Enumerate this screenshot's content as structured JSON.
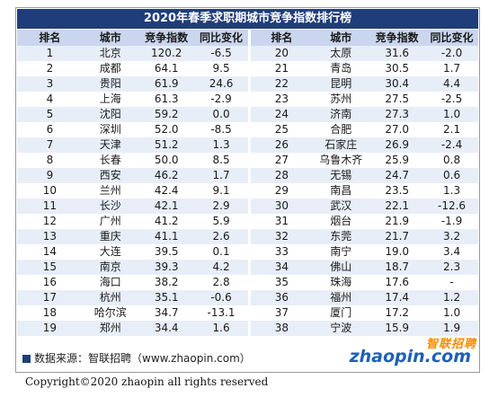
{
  "title": "2020年春季求职期城市竞争指数排行榜",
  "headers": [
    "排名",
    "城市",
    "竞争指数",
    "同比变化",
    "排名",
    "城市",
    "竞争指数",
    "同比变化"
  ],
  "rows": [
    [
      "1",
      "北京",
      "120.2",
      "-6.5",
      "20",
      "太原",
      "31.6",
      "-2.0"
    ],
    [
      "2",
      "成都",
      "64.1",
      "9.5",
      "21",
      "青岛",
      "30.5",
      "1.7"
    ],
    [
      "3",
      "贵阳",
      "61.9",
      "24.6",
      "22",
      "昆明",
      "30.4",
      "4.4"
    ],
    [
      "4",
      "上海",
      "61.3",
      "-2.9",
      "23",
      "苏州",
      "27.5",
      "-2.5"
    ],
    [
      "5",
      "沈阳",
      "59.2",
      "0.0",
      "24",
      "济南",
      "27.3",
      "1.0"
    ],
    [
      "6",
      "深圳",
      "52.0",
      "-8.5",
      "25",
      "合肥",
      "27.0",
      "2.1"
    ],
    [
      "7",
      "天津",
      "51.2",
      "1.3",
      "26",
      "石家庄",
      "26.9",
      "-2.4"
    ],
    [
      "8",
      "长春",
      "50.0",
      "8.5",
      "27",
      "乌鲁木齐",
      "25.9",
      "0.8"
    ],
    [
      "9",
      "西安",
      "46.2",
      "1.7",
      "28",
      "无锡",
      "24.7",
      "0.6"
    ],
    [
      "10",
      "兰州",
      "42.4",
      "9.1",
      "29",
      "南昌",
      "23.5",
      "1.3"
    ],
    [
      "11",
      "长沙",
      "42.1",
      "2.9",
      "30",
      "武汉",
      "22.1",
      "-12.6"
    ],
    [
      "12",
      "广州",
      "41.2",
      "5.9",
      "31",
      "烟台",
      "21.9",
      "-1.9"
    ],
    [
      "13",
      "重庆",
      "41.1",
      "2.6",
      "32",
      "东莞",
      "21.7",
      "3.2"
    ],
    [
      "14",
      "大连",
      "39.5",
      "0.1",
      "33",
      "南宁",
      "19.0",
      "3.4"
    ],
    [
      "15",
      "南京",
      "39.3",
      "4.2",
      "34",
      "佛山",
      "18.7",
      "2.3"
    ],
    [
      "16",
      "海口",
      "38.2",
      "2.8",
      "35",
      "珠海",
      "17.6",
      "-"
    ],
    [
      "17",
      "杭州",
      "35.1",
      "-0.6",
      "36",
      "福州",
      "17.4",
      "1.2"
    ],
    [
      "18",
      "哈尔滨",
      "34.7",
      "-13.1",
      "37",
      "厦门",
      "17.2",
      "1.0"
    ],
    [
      "19",
      "郑州",
      "34.4",
      "1.6",
      "38",
      "宁波",
      "15.9",
      "1.9"
    ]
  ],
  "source": "数据来源：智联招聘（www.zhaopin.com）",
  "logo": {
    "cn": "智联招聘",
    "en": "zhaopin.com"
  },
  "copyright": "Copyright©2020 zhaopin all rights reserved",
  "colors": {
    "title_bg": "#1f3d7a",
    "header_bg": "#c9d6ee",
    "stripe": "#e8eef8",
    "logo_orange": "#ff8a00",
    "logo_blue": "#1f5fb8"
  }
}
